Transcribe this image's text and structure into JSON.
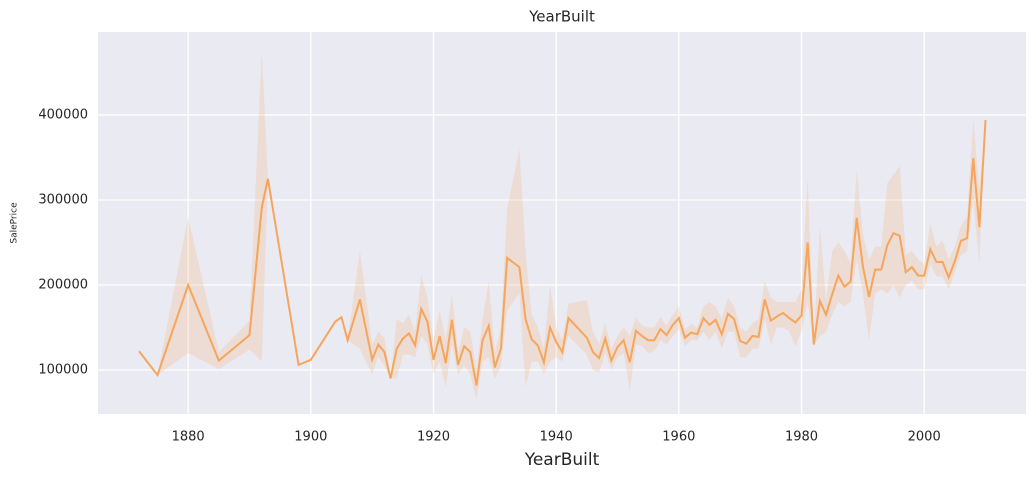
{
  "chart_data": {
    "type": "line",
    "title": "YearBuilt",
    "x_label": "YearBuilt",
    "y_label": "SalePrice",
    "x": [
      1872,
      1875,
      1880,
      1885,
      1890,
      1892,
      1893,
      1898,
      1900,
      1904,
      1905,
      1906,
      1908,
      1910,
      1911,
      1912,
      1913,
      1914,
      1915,
      1916,
      1917,
      1918,
      1919,
      1920,
      1921,
      1922,
      1923,
      1924,
      1925,
      1926,
      1927,
      1928,
      1929,
      1930,
      1931,
      1932,
      1934,
      1935,
      1936,
      1937,
      1938,
      1939,
      1940,
      1941,
      1942,
      1945,
      1946,
      1947,
      1948,
      1949,
      1950,
      1951,
      1952,
      1953,
      1954,
      1955,
      1956,
      1957,
      1958,
      1959,
      1960,
      1961,
      1962,
      1963,
      1964,
      1965,
      1966,
      1967,
      1968,
      1969,
      1970,
      1971,
      1972,
      1973,
      1974,
      1975,
      1976,
      1977,
      1978,
      1979,
      1980,
      1981,
      1982,
      1983,
      1984,
      1985,
      1986,
      1987,
      1988,
      1989,
      1990,
      1991,
      1992,
      1993,
      1994,
      1995,
      1996,
      1997,
      1998,
      1999,
      2000,
      2001,
      2002,
      2003,
      2004,
      2005,
      2006,
      2007,
      2008,
      2009,
      2010
    ],
    "values": [
      122000,
      94000,
      200000,
      111000,
      141000,
      291000,
      325000,
      106000,
      112000,
      157000,
      162000,
      135000,
      183000,
      112000,
      130000,
      121000,
      90000,
      125000,
      137000,
      143000,
      129000,
      172000,
      157000,
      112000,
      140000,
      108000,
      159000,
      106000,
      128000,
      121000,
      82000,
      135000,
      152000,
      103000,
      125000,
      232000,
      221000,
      160000,
      136000,
      129000,
      109000,
      150000,
      133000,
      121000,
      161000,
      138000,
      121000,
      114000,
      137000,
      111000,
      127000,
      135000,
      109000,
      146000,
      140000,
      135000,
      135000,
      148000,
      141000,
      153000,
      161000,
      138000,
      144000,
      142000,
      161000,
      153000,
      159000,
      142000,
      166000,
      160000,
      134000,
      131000,
      140000,
      139000,
      183000,
      158000,
      163000,
      167000,
      161000,
      156000,
      164000,
      250000,
      130000,
      181000,
      165000,
      189000,
      211000,
      198000,
      204000,
      279000,
      222000,
      186000,
      218000,
      218000,
      247000,
      261000,
      258000,
      215000,
      221000,
      211000,
      211000,
      242000,
      227000,
      227000,
      209000,
      228000,
      252000,
      255000,
      349000,
      268000,
      394000
    ],
    "ci_lower": [
      122000,
      94000,
      120000,
      101000,
      124000,
      110000,
      325000,
      106000,
      112000,
      157000,
      162000,
      135000,
      125000,
      95000,
      115000,
      105000,
      90000,
      90000,
      118000,
      118000,
      115000,
      140000,
      130000,
      95000,
      110000,
      80000,
      130000,
      95000,
      105000,
      95000,
      65000,
      110000,
      115000,
      90000,
      105000,
      170000,
      190000,
      80000,
      110000,
      110000,
      95000,
      110000,
      115000,
      110000,
      140000,
      118000,
      100000,
      97000,
      120000,
      100000,
      115000,
      120000,
      75000,
      130000,
      128000,
      120000,
      122000,
      135000,
      130000,
      140000,
      148000,
      128000,
      135000,
      135000,
      145000,
      135000,
      145000,
      125000,
      145000,
      145000,
      115000,
      115000,
      125000,
      125000,
      160000,
      130000,
      150000,
      150000,
      145000,
      128000,
      145000,
      180000,
      128000,
      140000,
      145000,
      165000,
      180000,
      175000,
      180000,
      230000,
      190000,
      135000,
      190000,
      195000,
      190000,
      200000,
      185000,
      200000,
      205000,
      195000,
      195000,
      225000,
      210000,
      210000,
      195000,
      215000,
      235000,
      240000,
      300000,
      225000,
      394000
    ],
    "ci_upper": [
      122000,
      94000,
      280000,
      121000,
      158000,
      475000,
      325000,
      106000,
      112000,
      157000,
      162000,
      135000,
      240000,
      130000,
      145000,
      138000,
      90000,
      160000,
      155000,
      165000,
      145000,
      212000,
      185000,
      135000,
      170000,
      135000,
      190000,
      120000,
      150000,
      145000,
      100000,
      160000,
      205000,
      120000,
      150000,
      290000,
      360000,
      240000,
      165000,
      150000,
      125000,
      200000,
      150000,
      135000,
      178000,
      182000,
      145000,
      130000,
      155000,
      125000,
      140000,
      150000,
      140000,
      162000,
      152000,
      150000,
      150000,
      162000,
      152000,
      165000,
      175000,
      148000,
      154000,
      150000,
      175000,
      180000,
      175000,
      160000,
      185000,
      175000,
      150000,
      145000,
      155000,
      160000,
      205000,
      185000,
      180000,
      180000,
      180000,
      180000,
      195000,
      325000,
      135000,
      270000,
      180000,
      240000,
      250000,
      240000,
      225000,
      335000,
      260000,
      230000,
      245000,
      245000,
      320000,
      330000,
      340000,
      235000,
      240000,
      230000,
      225000,
      272000,
      245000,
      252000,
      230000,
      245000,
      270000,
      280000,
      395000,
      310000,
      394000
    ],
    "color": "#f6a55c",
    "band_opacity": 0.2,
    "xlim": [
      1865.3,
      2016.6
    ],
    "ylim": [
      48200,
      497600
    ],
    "xticks": [
      1880,
      1900,
      1920,
      1940,
      1960,
      1980,
      2000
    ],
    "yticks": [
      100000,
      200000,
      300000,
      400000
    ],
    "grid": true
  }
}
